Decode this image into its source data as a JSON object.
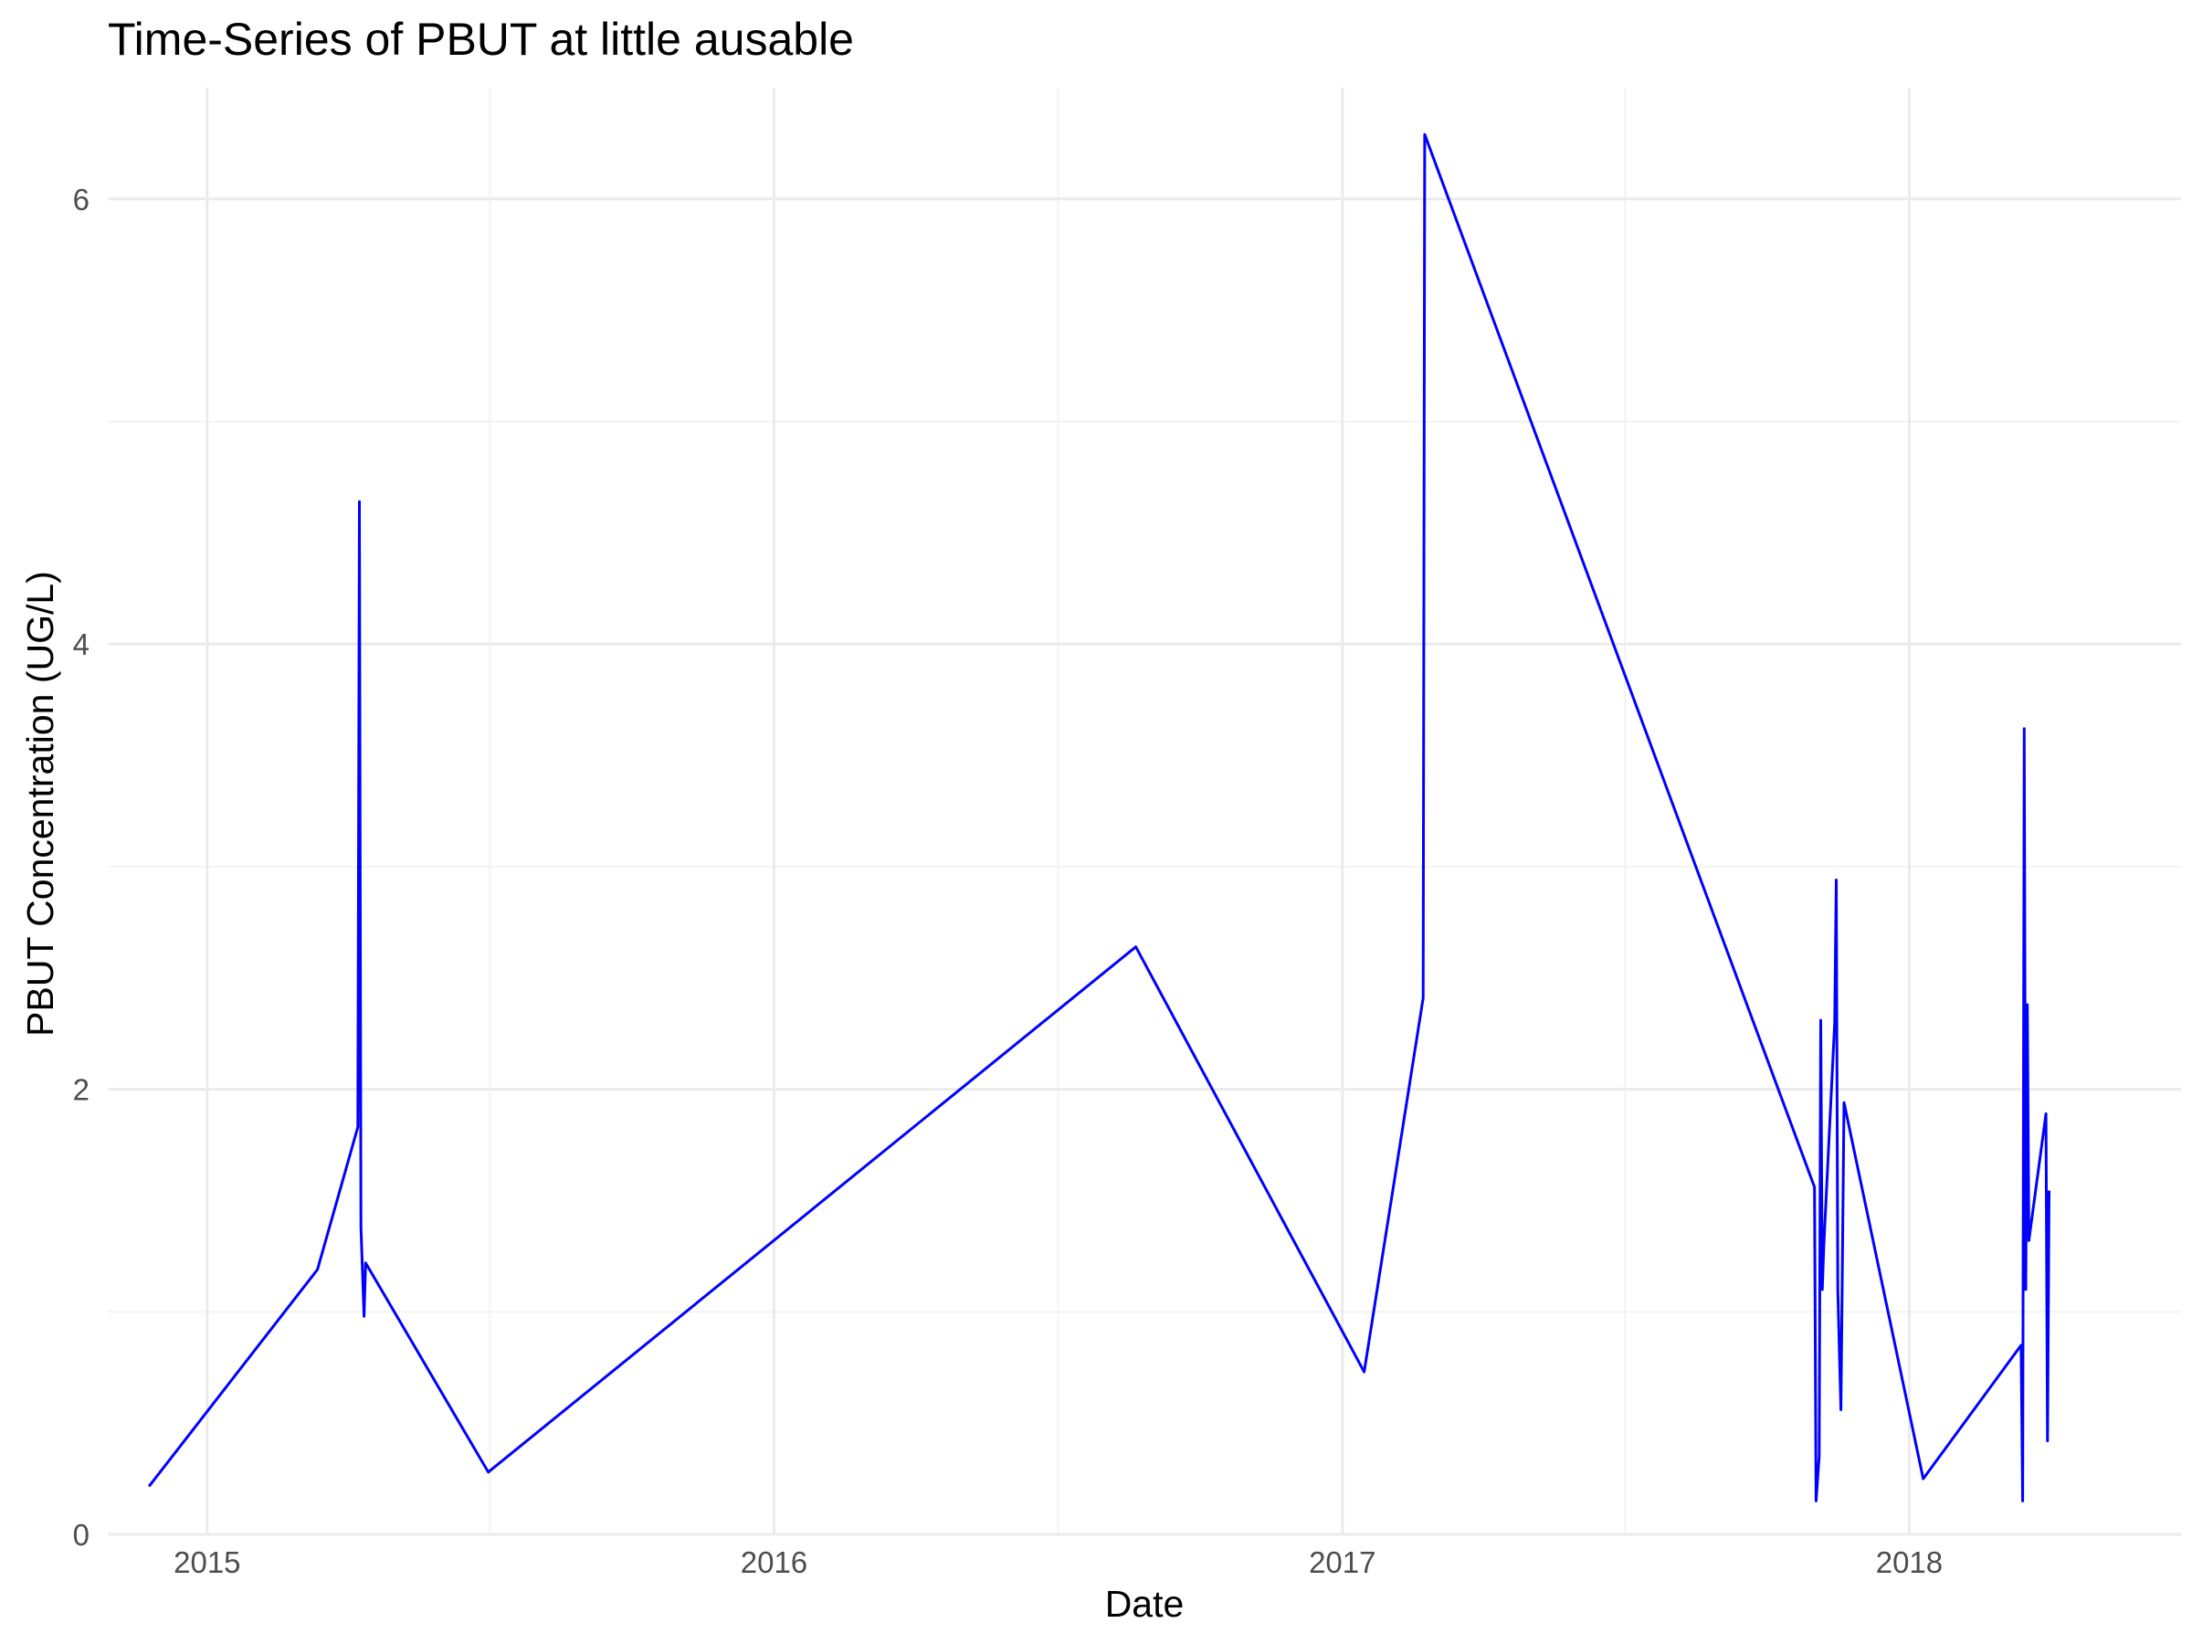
{
  "chart_data": {
    "type": "line",
    "title": "Time-Series of PBUT at little ausable",
    "xlabel": "Date",
    "ylabel": "PBUT Concentration (UG/L)",
    "x_ticks": [
      "2015",
      "2016",
      "2017",
      "2018"
    ],
    "y_ticks": [
      "0",
      "2",
      "4",
      "6"
    ],
    "ylim": [
      0,
      6.5
    ],
    "xlim": [
      "2014-10-29",
      "2018-06-25"
    ],
    "grid": true,
    "legend": "none",
    "series": [
      {
        "color": "#0000ff",
        "points": [
          {
            "x": "2014-11-25",
            "y": 0.22
          },
          {
            "x": "2015-03-13",
            "y": 1.19
          },
          {
            "x": "2015-04-08",
            "y": 1.83
          },
          {
            "x": "2015-04-09",
            "y": 4.64
          },
          {
            "x": "2015-04-10",
            "y": 1.38
          },
          {
            "x": "2015-04-12",
            "y": 0.98
          },
          {
            "x": "2015-04-13",
            "y": 1.22
          },
          {
            "x": "2015-07-01",
            "y": 0.28
          },
          {
            "x": "2016-08-21",
            "y": 2.64
          },
          {
            "x": "2017-01-15",
            "y": 0.73
          },
          {
            "x": "2017-02-22",
            "y": 2.41
          },
          {
            "x": "2017-02-23",
            "y": 6.29
          },
          {
            "x": "2017-11-01",
            "y": 1.56
          },
          {
            "x": "2017-11-02",
            "y": 0.15
          },
          {
            "x": "2017-11-04",
            "y": 0.35
          },
          {
            "x": "2017-11-05",
            "y": 2.31
          },
          {
            "x": "2017-11-06",
            "y": 1.1
          },
          {
            "x": "2017-11-07",
            "y": 1.3
          },
          {
            "x": "2017-11-14",
            "y": 2.3
          },
          {
            "x": "2017-11-15",
            "y": 2.94
          },
          {
            "x": "2017-11-16",
            "y": 1.1
          },
          {
            "x": "2017-11-18",
            "y": 0.56
          },
          {
            "x": "2017-11-20",
            "y": 1.94
          },
          {
            "x": "2018-01-10",
            "y": 0.25
          },
          {
            "x": "2018-03-14",
            "y": 0.85
          },
          {
            "x": "2018-03-15",
            "y": 0.15
          },
          {
            "x": "2018-03-16",
            "y": 3.62
          },
          {
            "x": "2018-03-17",
            "y": 1.1
          },
          {
            "x": "2018-03-18",
            "y": 2.38
          },
          {
            "x": "2018-03-19",
            "y": 1.32
          },
          {
            "x": "2018-03-30",
            "y": 1.89
          },
          {
            "x": "2018-03-31",
            "y": 0.42
          },
          {
            "x": "2018-04-01",
            "y": 1.54
          }
        ]
      }
    ]
  }
}
